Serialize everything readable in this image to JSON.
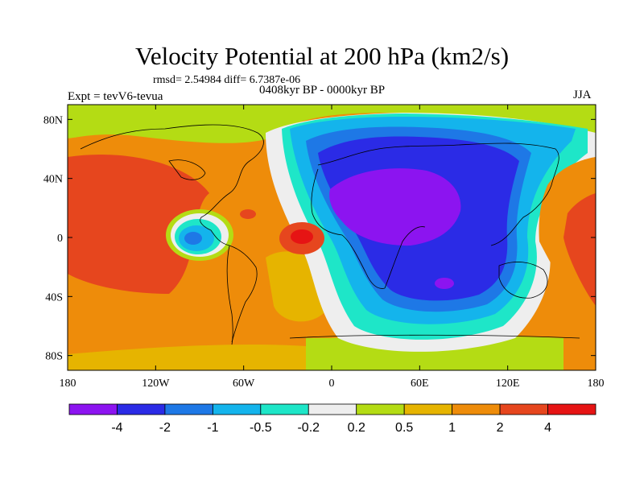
{
  "header": {
    "title": "Velocity Potential at 200 hPa (km2/s)",
    "stats": "rmsd= 2.54984 diff= 6.7387e-06",
    "expt": "Expt = tevV6-tevua",
    "period": "0408kyr BP - 0000kyr BP",
    "season": "JJA"
  },
  "map": {
    "projection": "cylindrical-equidistant",
    "lon_range": [
      -180,
      180
    ],
    "lat_range": [
      -90,
      90
    ],
    "x_ticks": [
      {
        "value": -180,
        "label": "180"
      },
      {
        "value": -120,
        "label": "120W"
      },
      {
        "value": -60,
        "label": "60W"
      },
      {
        "value": 0,
        "label": "0"
      },
      {
        "value": 60,
        "label": "60E"
      },
      {
        "value": 120,
        "label": "120E"
      },
      {
        "value": 180,
        "label": "180"
      }
    ],
    "y_ticks": [
      {
        "value": 80,
        "label": "80N"
      },
      {
        "value": 40,
        "label": "40N"
      },
      {
        "value": 0,
        "label": "0"
      },
      {
        "value": -40,
        "label": "40S"
      },
      {
        "value": -80,
        "label": "80S"
      }
    ]
  },
  "colorbar": {
    "colors": [
      "#8c14f0",
      "#2b2be6",
      "#1e78e6",
      "#14b4ec",
      "#1ee6c8",
      "#eeeeee",
      "#b4dc14",
      "#e6b400",
      "#ee8c0a",
      "#e6461e",
      "#e61414"
    ],
    "labels": [
      "-4",
      "-2",
      "-1",
      "-0.5",
      "-0.2",
      "0.2",
      "0.5",
      "1",
      "2",
      "4"
    ]
  }
}
